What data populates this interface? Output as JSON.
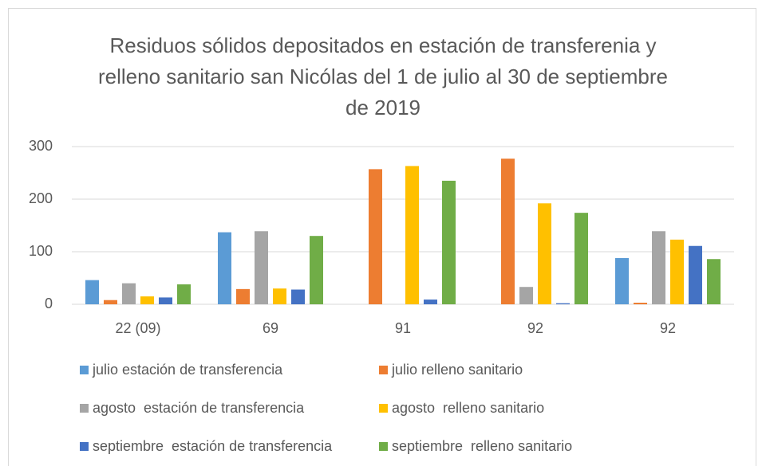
{
  "chart_data": {
    "type": "bar",
    "title": "Residuos sólidos depositados en estación de transferenia y relleno sanitario san Nicólas del 1 de julio al 30 de septiembre de 2019",
    "categories": [
      "22 (09)",
      "69",
      "91",
      "92",
      "92"
    ],
    "series": [
      {
        "name": "julio estación de transferencia",
        "color": "#5b9bd5",
        "values": [
          46,
          137,
          0,
          0,
          88
        ]
      },
      {
        "name": "julio relleno sanitario",
        "color": "#ed7d31",
        "values": [
          8,
          29,
          257,
          277,
          3
        ]
      },
      {
        "name": "agosto  estación de transferencia",
        "color": "#a5a5a5",
        "values": [
          40,
          139,
          0,
          33,
          139
        ]
      },
      {
        "name": "agosto  relleno sanitario",
        "color": "#ffc000",
        "values": [
          15,
          30,
          263,
          192,
          123
        ]
      },
      {
        "name": "septiembre  estación de transferencia",
        "color": "#4472c4",
        "values": [
          13,
          28,
          9,
          2,
          111
        ]
      },
      {
        "name": "septiembre  relleno sanitario",
        "color": "#70ad47",
        "values": [
          38,
          130,
          235,
          174,
          86
        ]
      }
    ],
    "ylim": [
      0,
      300
    ],
    "yticks": [
      0,
      100,
      200,
      300
    ],
    "grid": true,
    "legend": "bottom"
  }
}
